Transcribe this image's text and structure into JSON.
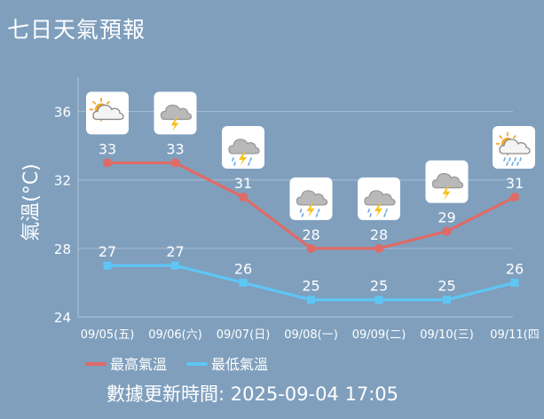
{
  "title": "七日天氣預報",
  "updated_text": "數據更新時間: 2025-09-04 17:05",
  "colors": {
    "background": "#7f9fbd",
    "high": "#e06a66",
    "low": "#5ec6f5",
    "grid": "#a9bed3"
  },
  "chart_data": {
    "type": "line",
    "ylabel": "氣溫(°C)",
    "ylim": [
      24,
      38
    ],
    "yticks": [
      24,
      28,
      32,
      36
    ],
    "grid": true,
    "legend_position": "bottom-left",
    "categories": [
      "09/05(五)",
      "09/06(六)",
      "09/07(日)",
      "09/08(一)",
      "09/09(二)",
      "09/10(三)",
      "09/11(四"
    ],
    "series": [
      {
        "name": "最高氣溫",
        "values": [
          33,
          33,
          31,
          28,
          28,
          29,
          31
        ]
      },
      {
        "name": "最低氣溫",
        "values": [
          27,
          27,
          26,
          25,
          25,
          25,
          26
        ]
      }
    ],
    "icons": [
      "partly-cloudy-icon",
      "thunderstorm-icon",
      "thunderstorm-rain-icon",
      "thunderstorm-rain-icon",
      "thunderstorm-rain-icon",
      "thunderstorm-icon",
      "partly-cloudy-rain-icon"
    ]
  }
}
